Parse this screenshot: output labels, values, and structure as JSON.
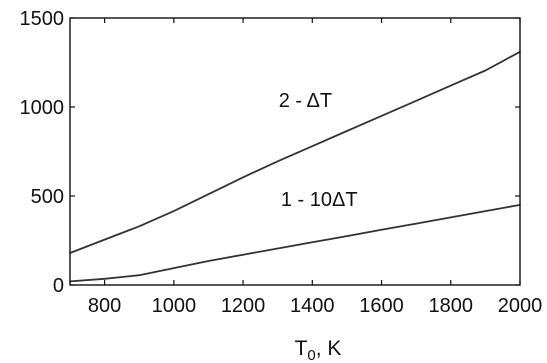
{
  "chart_data": {
    "type": "line",
    "title": "",
    "xlabel": {
      "main": "T",
      "subscript": "0",
      "unit": ", K"
    },
    "ylabel": "",
    "xlim": [
      700,
      2000
    ],
    "ylim": [
      0,
      1500
    ],
    "x_ticks": [
      800,
      1000,
      1200,
      1400,
      1600,
      1800,
      2000
    ],
    "y_ticks": [
      0,
      500,
      1000,
      1500
    ],
    "x_tick_labels": [
      "800",
      "1000",
      "1200",
      "1400",
      "1600",
      "1800",
      "2000"
    ],
    "y_tick_labels": [
      "0",
      "500",
      "1000",
      "1500"
    ],
    "grid": false,
    "series": [
      {
        "name": "2 - ΔT",
        "color": "#333333",
        "x": [
          700,
          800,
          900,
          1000,
          1100,
          1200,
          1300,
          1400,
          1500,
          1600,
          1700,
          1800,
          1900,
          2000
        ],
        "y": [
          180,
          255,
          330,
          415,
          510,
          605,
          695,
          780,
          865,
          950,
          1035,
          1120,
          1205,
          1310
        ]
      },
      {
        "name": "1 - 10ΔT",
        "color": "#333333",
        "x": [
          700,
          800,
          900,
          1000,
          1100,
          1200,
          1300,
          1400,
          1500,
          1600,
          1700,
          1800,
          1900,
          2000
        ],
        "y": [
          20,
          35,
          55,
          95,
          135,
          170,
          205,
          240,
          275,
          310,
          345,
          380,
          415,
          450
        ]
      }
    ]
  }
}
